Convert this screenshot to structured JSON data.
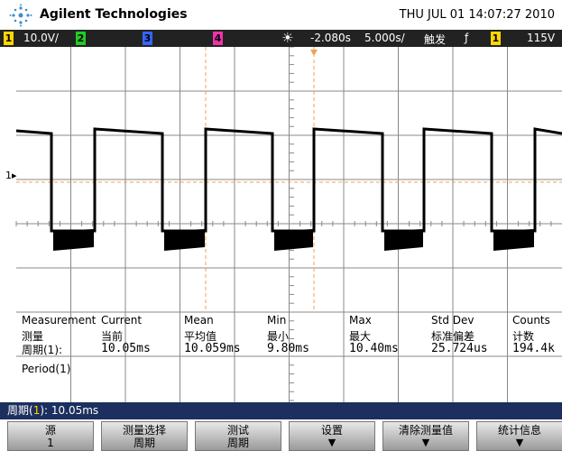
{
  "header": {
    "brand": "Agilent Technologies",
    "datetime": "THU JUL 01 14:07:27 2010"
  },
  "channel_bar": {
    "ch1": "1",
    "ch1_scale": "10.0V/",
    "ch2": "2",
    "ch3": "3",
    "ch4": "4",
    "delay": "-2.080s",
    "timebase": "5.000s/",
    "trigger": "触发",
    "slope": "ƒ",
    "trig_source": "1",
    "trig_level": "115V"
  },
  "measurements": {
    "headers_en": [
      "Measurement",
      "Current",
      "Mean",
      "Min",
      "Max",
      "Std Dev",
      "Counts"
    ],
    "headers_zh": [
      "测量",
      "当前",
      "平均值",
      "最小",
      "最大",
      "标准偏差",
      "计数"
    ],
    "row": [
      "周期(1):",
      "10.05ms",
      "10.059ms",
      "9.80ms",
      "10.40ms",
      "25.724us",
      "194.4k"
    ],
    "name": "Period(1)"
  },
  "status": {
    "label": "周期(",
    "channel": "1",
    "rest": "): 10.05ms"
  },
  "softkeys": [
    {
      "label": "源",
      "value": "1"
    },
    {
      "label": "测量选择",
      "value": "周期"
    },
    {
      "label": "测试",
      "value": "周期"
    },
    {
      "label": "设置"
    },
    {
      "label": "清除测量值"
    },
    {
      "label": "统计信息"
    }
  ]
}
